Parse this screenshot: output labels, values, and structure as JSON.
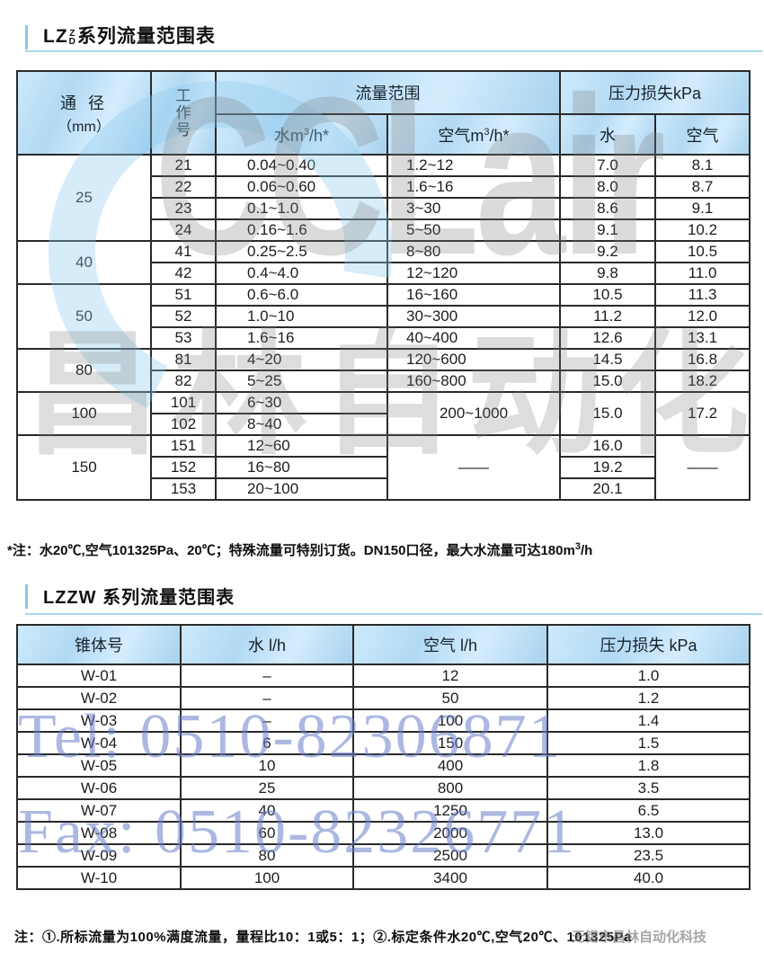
{
  "table1": {
    "title_prefix": "LZ",
    "title_stack_top": "Z",
    "title_stack_bottom": "D",
    "title_suffix": "系列流量范围表",
    "headers": {
      "diameter": "通 径",
      "diameter_unit": "（mm）",
      "work_no_chars": [
        "工",
        "作",
        "号"
      ],
      "flow_range": "流量范围",
      "water_pre": "水m",
      "sup3": "3",
      "water_post": "/h*",
      "air_pre": "空气m",
      "air_post": "/h*",
      "pressure_loss": "压力损失kPa",
      "water": "水",
      "air": "空气"
    },
    "rows": [
      {
        "g": 1,
        "cells": [
          {
            "t": "25",
            "rs": 4
          },
          {
            "t": "21"
          },
          {
            "t": "0.04~0.40",
            "cls": "l3"
          },
          {
            "t": "1.2~12",
            "cls": "l4"
          },
          {
            "t": "7.0"
          },
          {
            "t": "8.1"
          }
        ]
      },
      {
        "cells": [
          {
            "t": "22"
          },
          {
            "t": "0.06~0.60",
            "cls": "l3"
          },
          {
            "t": "1.6~16",
            "cls": "l4"
          },
          {
            "t": "8.0"
          },
          {
            "t": "8.7"
          }
        ]
      },
      {
        "cells": [
          {
            "t": "23"
          },
          {
            "t": "0.1~1.0",
            "cls": "l3"
          },
          {
            "t": "3~30",
            "cls": "l4"
          },
          {
            "t": "8.6"
          },
          {
            "t": "9.1"
          }
        ]
      },
      {
        "cells": [
          {
            "t": "24"
          },
          {
            "t": "0.16~1.6",
            "cls": "l3"
          },
          {
            "t": "5~50",
            "cls": "l4"
          },
          {
            "t": "9.1"
          },
          {
            "t": "10.2"
          }
        ]
      },
      {
        "g": 1,
        "cells": [
          {
            "t": "40",
            "rs": 2
          },
          {
            "t": "41"
          },
          {
            "t": "0.25~2.5",
            "cls": "l3"
          },
          {
            "t": "8~80",
            "cls": "l4"
          },
          {
            "t": "9.2"
          },
          {
            "t": "10.5"
          }
        ]
      },
      {
        "cells": [
          {
            "t": "42"
          },
          {
            "t": "0.4~4.0",
            "cls": "l3"
          },
          {
            "t": "12~120",
            "cls": "l4"
          },
          {
            "t": "9.8"
          },
          {
            "t": "11.0"
          }
        ]
      },
      {
        "g": 1,
        "cells": [
          {
            "t": "50",
            "rs": 3
          },
          {
            "t": "51"
          },
          {
            "t": "0.6~6.0",
            "cls": "l3"
          },
          {
            "t": "16~160",
            "cls": "l4"
          },
          {
            "t": "10.5"
          },
          {
            "t": "11.3"
          }
        ]
      },
      {
        "cells": [
          {
            "t": "52"
          },
          {
            "t": "1.0~10",
            "cls": "l3"
          },
          {
            "t": "30~300",
            "cls": "l4"
          },
          {
            "t": "11.2"
          },
          {
            "t": "12.0"
          }
        ]
      },
      {
        "cells": [
          {
            "t": "53"
          },
          {
            "t": "1.6~16",
            "cls": "l3"
          },
          {
            "t": "40~400",
            "cls": "l4"
          },
          {
            "t": "12.6"
          },
          {
            "t": "13.1"
          }
        ]
      },
      {
        "g": 1,
        "cells": [
          {
            "t": "80",
            "rs": 2
          },
          {
            "t": "81"
          },
          {
            "t": "4~20",
            "cls": "l3"
          },
          {
            "t": "120~600",
            "cls": "l4"
          },
          {
            "t": "14.5"
          },
          {
            "t": "16.8"
          }
        ]
      },
      {
        "cells": [
          {
            "t": "82"
          },
          {
            "t": "5~25",
            "cls": "l3"
          },
          {
            "t": "160~800",
            "cls": "l4"
          },
          {
            "t": "15.0"
          },
          {
            "t": "18.2"
          }
        ]
      },
      {
        "g": 1,
        "cells": [
          {
            "t": "100",
            "rs": 2
          },
          {
            "t": "101"
          },
          {
            "t": "6~30",
            "cls": "l3"
          },
          {
            "t": "200~1000",
            "rs": 2
          },
          {
            "t": "15.0",
            "rs": 2
          },
          {
            "t": "17.2",
            "rs": 2
          }
        ]
      },
      {
        "cells": [
          {
            "t": "102"
          },
          {
            "t": "8~40",
            "cls": "l3"
          }
        ]
      },
      {
        "g": 1,
        "cells": [
          {
            "t": "150",
            "rs": 3
          },
          {
            "t": "151"
          },
          {
            "t": "12~60",
            "cls": "l3"
          },
          {
            "t": "——",
            "rs": 3
          },
          {
            "t": "16.0"
          },
          {
            "t": "——",
            "rs": 3
          }
        ]
      },
      {
        "cells": [
          {
            "t": "152"
          },
          {
            "t": "16~80",
            "cls": "l3"
          },
          {
            "t": "19.2"
          }
        ]
      },
      {
        "cells": [
          {
            "t": "153"
          },
          {
            "t": "20~100",
            "cls": "l3"
          },
          {
            "t": "20.1"
          }
        ]
      }
    ],
    "note_pre": "*注：水20℃,空气101325Pa、20℃；特殊流量可特别订货。DN150口径，最大水流量可达180m",
    "note_sup": "3",
    "note_post": "/h"
  },
  "table2": {
    "title": "LZZW 系列流量范围表",
    "headers": [
      "锥体号",
      "水 l/h",
      "空气 l/h",
      "压力损失 kPa"
    ],
    "rows": [
      {
        "cells": [
          {
            "t": "W-01"
          },
          {
            "t": "–"
          },
          {
            "t": "12"
          },
          {
            "t": "1.0"
          }
        ]
      },
      {
        "cells": [
          {
            "t": "W-02"
          },
          {
            "t": "–"
          },
          {
            "t": "50"
          },
          {
            "t": "1.2"
          }
        ]
      },
      {
        "cells": [
          {
            "t": "W-03"
          },
          {
            "t": "–"
          },
          {
            "t": "100"
          },
          {
            "t": "1.4"
          }
        ]
      },
      {
        "cells": [
          {
            "t": "W-04"
          },
          {
            "t": "6"
          },
          {
            "t": "150"
          },
          {
            "t": "1.5"
          }
        ]
      },
      {
        "cells": [
          {
            "t": "W-05"
          },
          {
            "t": "10"
          },
          {
            "t": "400"
          },
          {
            "t": "1.8"
          }
        ]
      },
      {
        "cells": [
          {
            "t": "W-06"
          },
          {
            "t": "25"
          },
          {
            "t": "800"
          },
          {
            "t": "3.5"
          }
        ]
      },
      {
        "cells": [
          {
            "t": "W-07"
          },
          {
            "t": "40"
          },
          {
            "t": "1250"
          },
          {
            "t": "6.5"
          }
        ]
      },
      {
        "cells": [
          {
            "t": "W-08"
          },
          {
            "t": "60"
          },
          {
            "t": "2000"
          },
          {
            "t": "13.0"
          }
        ]
      },
      {
        "cells": [
          {
            "t": "W-09"
          },
          {
            "t": "80"
          },
          {
            "t": "2500"
          },
          {
            "t": "23.5"
          }
        ]
      },
      {
        "cells": [
          {
            "t": "W-10"
          },
          {
            "t": "100"
          },
          {
            "t": "3400"
          },
          {
            "t": "40.0"
          }
        ]
      }
    ],
    "note": "注：①.所标流量为100%满度流量，量程比10：1或5：1；②.标定条件水20℃,空气20℃、101325Pa"
  },
  "watermarks": {
    "logo_text": "CCLair",
    "cn_text": "昌林自动化",
    "tel": "Tel: 0510-82306871",
    "fax": "Fax: 0510-82326771",
    "corner": "无锡市昌林自动化科技"
  },
  "colors": {
    "header_blue": "#b2d9f3",
    "accent_cyan": "#a9d9ec",
    "border": "#2a2a2a",
    "watermark_blue": "#677dca",
    "watermark_gray": "#7d7d7d"
  }
}
